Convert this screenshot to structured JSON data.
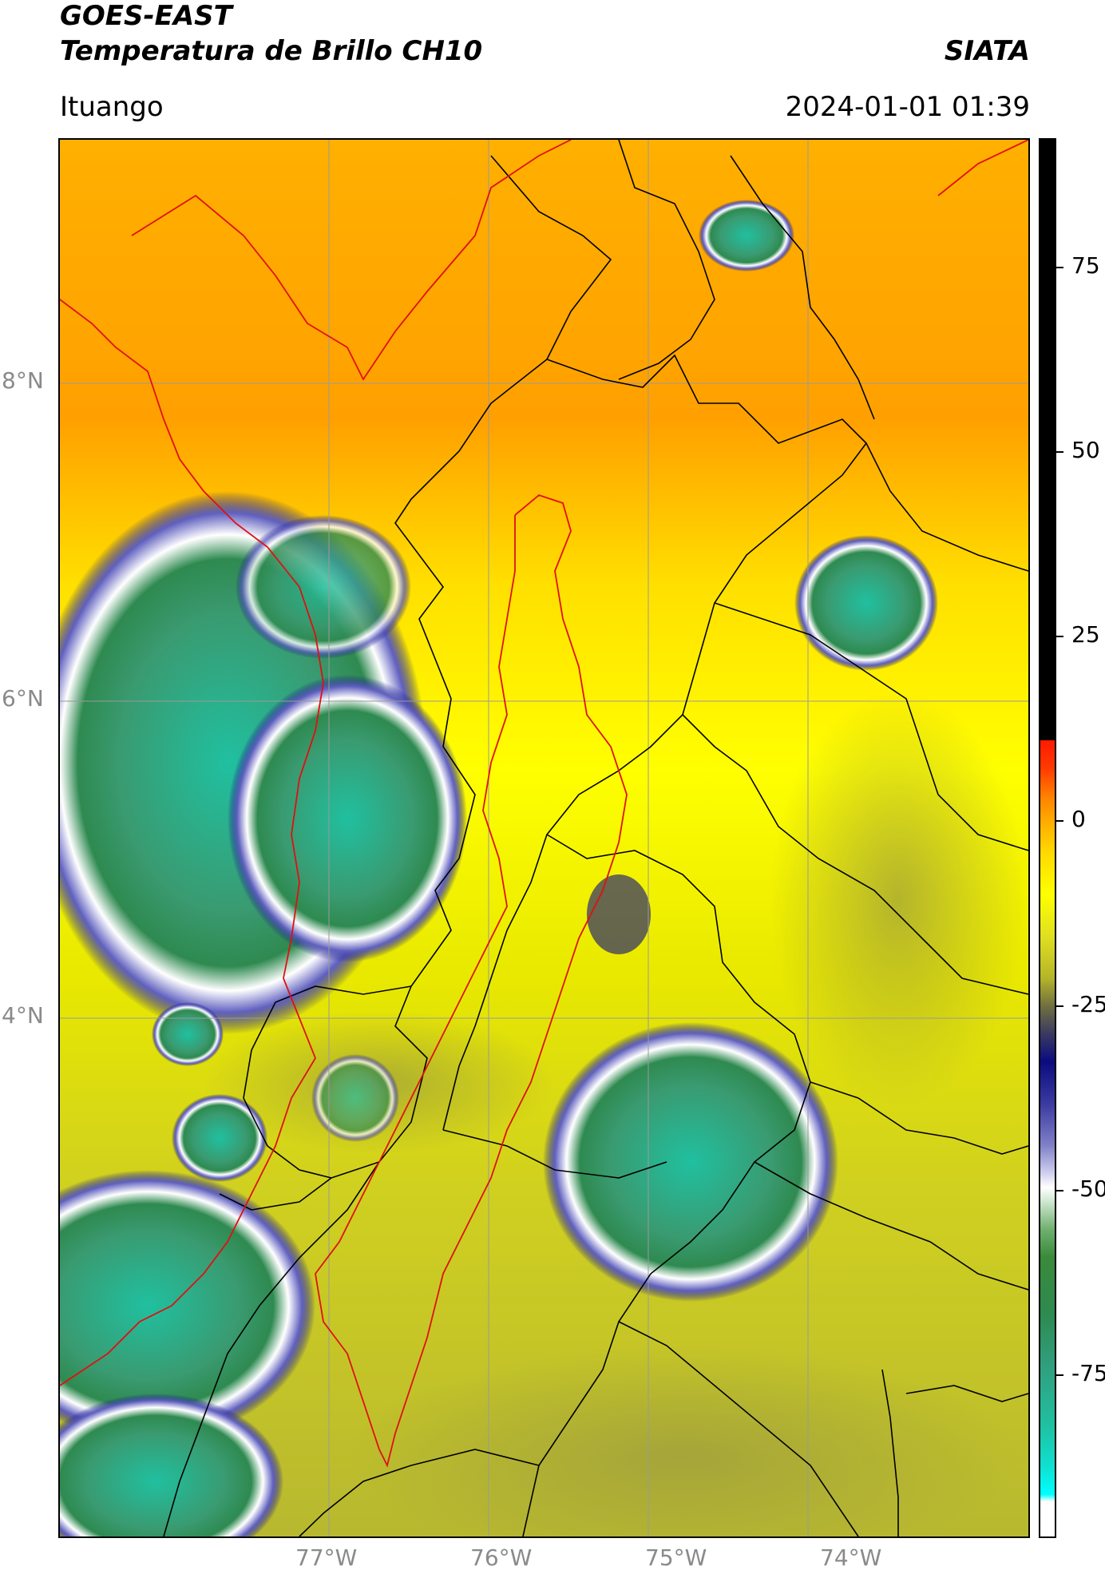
{
  "header": {
    "satellite": "GOES-EAST",
    "product": "Temperatura de Brillo CH10",
    "agency": "SIATA",
    "location": "Ituango",
    "datetime": "2024-01-01 01:39"
  },
  "map": {
    "lat_ticks": [
      "8°N",
      "6°N",
      "4°N"
    ],
    "lon_ticks": [
      "77°W",
      "76°W",
      "75°W",
      "74°W"
    ],
    "boundary_colors": {
      "national_coast": "#e01010",
      "departments": "#000000"
    }
  },
  "colorbar": {
    "ticks": [
      "75",
      "50",
      "25",
      "0",
      "-25",
      "-50",
      "-75"
    ],
    "colors": {
      "black": "#000000",
      "red": "#ff1a00",
      "orange": "#ff9a00",
      "yellow": "#ffff00",
      "olive": "#b5b52a",
      "navy": "#0b0b80",
      "white": "#ffffff",
      "green": "#3a8a3a",
      "cyan": "#10e0d0"
    }
  }
}
